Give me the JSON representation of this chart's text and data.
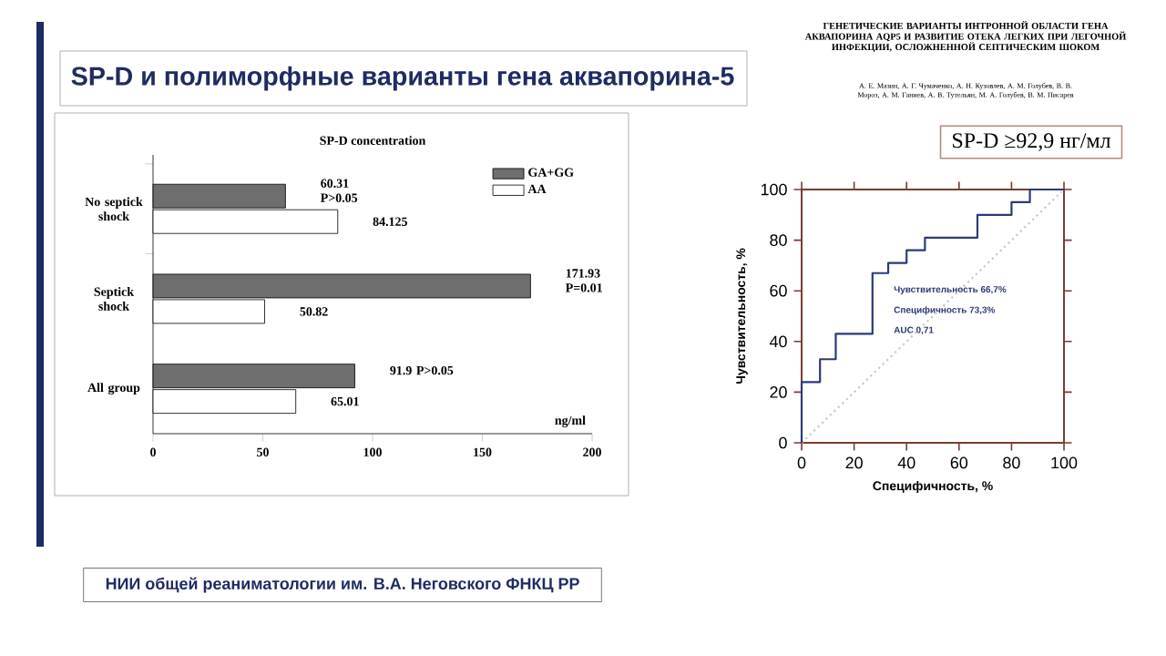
{
  "chart_data": [
    {
      "type": "bar",
      "orientation": "horizontal",
      "title": "SP-D concentration",
      "xlabel": "ng/ml",
      "categories": [
        "No septick shock",
        "Septick shock",
        "All group"
      ],
      "series": [
        {
          "name": "GA+GG",
          "color": "#6e6e6e",
          "values": [
            60.31,
            171.93,
            91.9
          ],
          "value_labels": [
            "60.31 P>0.05",
            "171.93 P=0.01",
            "91.9 P>0.05"
          ]
        },
        {
          "name": "AA",
          "color": "#ffffff",
          "values": [
            84.125,
            50.82,
            65.01
          ],
          "value_labels": [
            "84.125",
            "50.82",
            "65.01"
          ]
        }
      ],
      "xlim": [
        0,
        200
      ],
      "xticks": [
        0,
        50,
        100,
        150,
        200
      ],
      "legend": "top right",
      "annotations": [
        "SP-D и полиморфные варианты гена аквапорина-5",
        "ГЕНЕТИЧЕСКИЕ ВАРИАНТЫ ИНТРОННОЙ ОБЛАСТИ ГЕНА АКВАПОРИНА AQP5 И РАЗВИТИЕ ОТЕКА ЛЕГКИХ ПРИ ЛЕГОЧНОЙ ИНФЕКЦИИ, ОСЛОЖНЕННОЙ СЕПТИЧЕСКИМ ШОКОМ",
        "А. Е. Мазин, А. Г. Чумаченко, А. Н. Кузовлев, А. М. Голубев, В. В. Мороз, А. М. Ганиев, А. В. Тутельян, М. А. Голубев, В. М. Писарев",
        "НИИ общей реаниматологии им. В.А. Неговского ФНКЦ РР"
      ]
    },
    {
      "type": "step",
      "title": "SP-D ≥92,9 нг/мл",
      "xlabel": "Специфичность, %",
      "ylabel": "Чувствительность, %",
      "series": [
        {
          "type": "step",
          "color": "#2b3a78",
          "x": [
            0,
            0,
            7,
            13,
            27,
            33,
            40,
            47,
            67,
            80,
            87,
            100
          ],
          "values": [
            0,
            24,
            33,
            43,
            67,
            71,
            76,
            81,
            90,
            95,
            100,
            100
          ]
        },
        {
          "type": "line",
          "color": "#c8c8c8",
          "line_style": "dotted",
          "x": [
            0,
            100
          ],
          "values": [
            0,
            100
          ]
        }
      ],
      "xlim": [
        0,
        100
      ],
      "ylim": [
        0,
        100
      ],
      "xticks": [
        0,
        20,
        40,
        60,
        80,
        100
      ],
      "yticks": [
        0,
        20,
        40,
        60,
        80,
        100
      ],
      "annotations": [
        "Чувствительность 66,7%",
        "Специфичность 73,3%",
        "AUC 0,71"
      ]
    }
  ]
}
